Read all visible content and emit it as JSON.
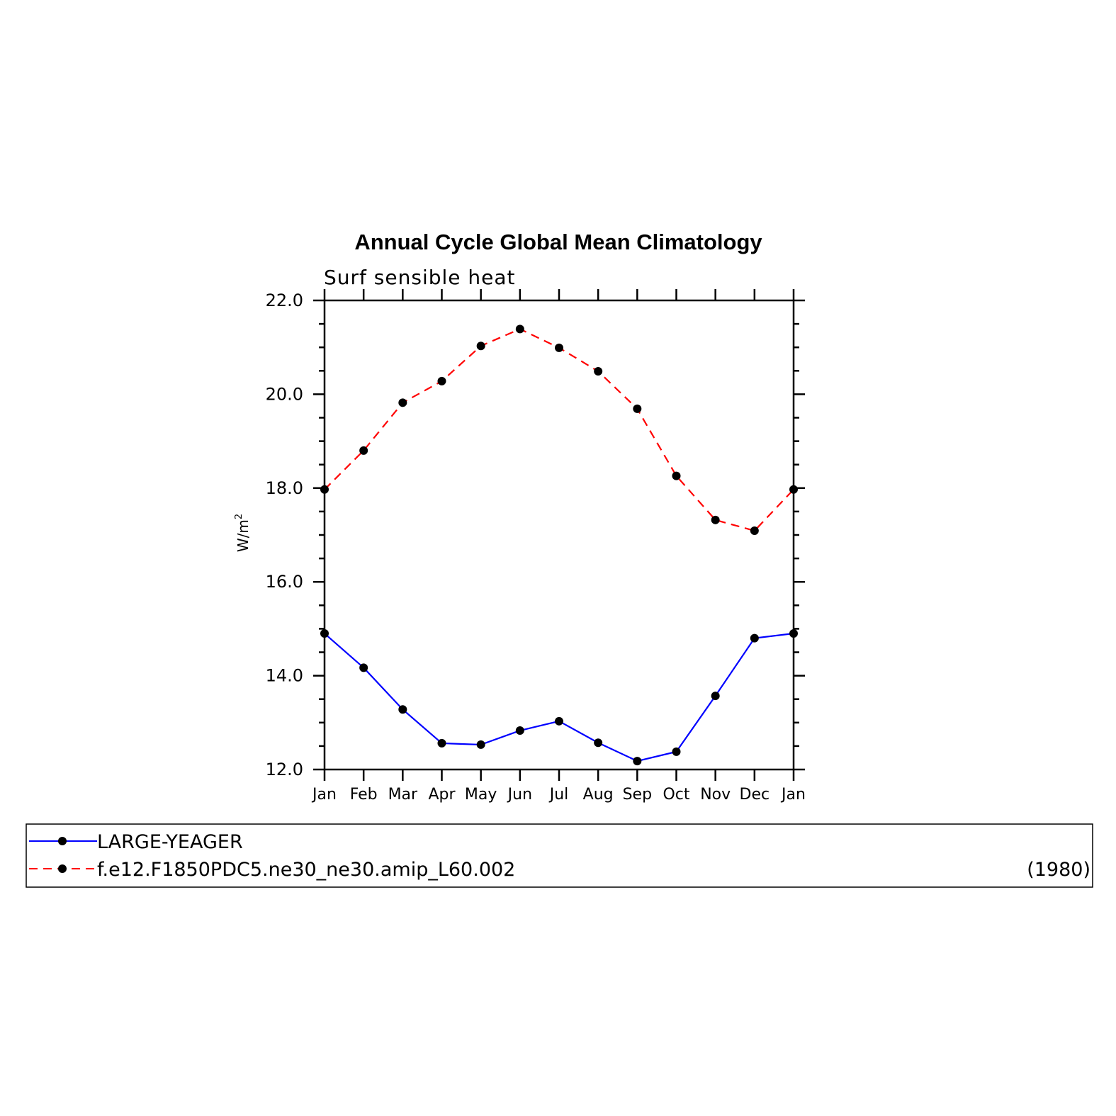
{
  "chart_data": {
    "type": "line",
    "title": "Annual Cycle Global Mean Climatology",
    "subtitle": "Surf sensible heat",
    "ylabel": "W/m",
    "ylabel_superscript": "2",
    "categories": [
      "Jan",
      "Feb",
      "Mar",
      "Apr",
      "May",
      "Jun",
      "Jul",
      "Aug",
      "Sep",
      "Oct",
      "Nov",
      "Dec",
      "Jan"
    ],
    "ylim": [
      12.0,
      22.0
    ],
    "yticks": [
      "12.0",
      "14.0",
      "16.0",
      "18.0",
      "20.0",
      "22.0"
    ],
    "grid": false,
    "legend_position": "bottom",
    "series": [
      {
        "name": "LARGE-YEAGER",
        "color": "#0000ff",
        "dash": "solid",
        "marker": "filled-circle",
        "values": [
          14.9,
          14.17,
          13.28,
          12.56,
          12.53,
          12.83,
          13.03,
          12.57,
          12.18,
          12.38,
          13.57,
          14.8,
          14.9
        ]
      },
      {
        "name": "f.e12.F1850PDC5.ne30_ne30.amip_L60.002",
        "color": "#ff0000",
        "dash": "dashed",
        "marker": "filled-circle",
        "values": [
          17.97,
          18.8,
          19.82,
          20.28,
          21.03,
          21.39,
          20.99,
          20.49,
          19.69,
          18.26,
          17.32,
          17.09,
          17.97
        ]
      }
    ],
    "annotation": "(1980)"
  }
}
